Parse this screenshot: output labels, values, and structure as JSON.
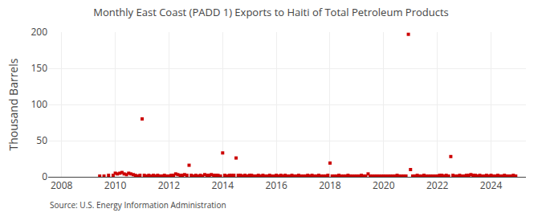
{
  "chart_data": {
    "type": "scatter",
    "title": "Monthly East Coast (PADD 1) Exports to Haiti of Total Petroleum Products",
    "ylabel": "Thousand Barrels",
    "annotations": [
      "Source: U.S. Energy Information Administration"
    ],
    "color": "#cc0000",
    "marker": "square",
    "grid": true,
    "xlim": [
      2007.5,
      2025.3
    ],
    "xticks": [
      2008,
      2010,
      2012,
      2014,
      2016,
      2018,
      2020,
      2022,
      2024
    ],
    "ylim": [
      0,
      200
    ],
    "yticks": [
      0,
      50,
      100,
      150,
      200
    ],
    "x": [
      2009.42,
      2009.58,
      2009.75,
      2009.92,
      2010,
      2010.08,
      2010.17,
      2010.25,
      2010.33,
      2010.42,
      2010.5,
      2010.58,
      2010.67,
      2010.75,
      2010.83,
      2010.92,
      2011,
      2011.08,
      2011.17,
      2011.25,
      2011.33,
      2011.42,
      2011.5,
      2011.58,
      2011.67,
      2011.75,
      2011.83,
      2011.92,
      2012,
      2012.08,
      2012.17,
      2012.25,
      2012.33,
      2012.42,
      2012.5,
      2012.58,
      2012.67,
      2012.75,
      2012.83,
      2012.92,
      2013,
      2013.08,
      2013.17,
      2013.25,
      2013.33,
      2013.42,
      2013.5,
      2013.58,
      2013.67,
      2013.75,
      2013.83,
      2013.92,
      2014,
      2014.08,
      2014.17,
      2014.25,
      2014.33,
      2014.42,
      2014.5,
      2014.58,
      2014.67,
      2014.75,
      2014.83,
      2014.92,
      2015,
      2015.08,
      2015.17,
      2015.25,
      2015.33,
      2015.42,
      2015.5,
      2015.58,
      2015.67,
      2015.75,
      2015.83,
      2015.92,
      2016,
      2016.08,
      2016.17,
      2016.25,
      2016.33,
      2016.42,
      2016.5,
      2016.58,
      2016.67,
      2016.75,
      2016.83,
      2016.92,
      2017,
      2017.08,
      2017.17,
      2017.25,
      2017.33,
      2017.42,
      2017.5,
      2017.58,
      2017.67,
      2017.75,
      2017.83,
      2017.92,
      2018,
      2018.08,
      2018.17,
      2018.25,
      2018.33,
      2018.42,
      2018.5,
      2018.58,
      2018.67,
      2018.75,
      2018.83,
      2018.92,
      2019,
      2019.08,
      2019.17,
      2019.25,
      2019.33,
      2019.42,
      2019.5,
      2019.58,
      2019.67,
      2019.75,
      2019.83,
      2019.92,
      2020,
      2020.08,
      2020.17,
      2020.25,
      2020.33,
      2020.42,
      2020.5,
      2020.58,
      2020.67,
      2020.75,
      2020.83,
      2020.92,
      2021,
      2021.08,
      2021.17,
      2021.25,
      2021.33,
      2021.42,
      2021.5,
      2021.58,
      2021.67,
      2021.75,
      2021.83,
      2021.92,
      2022,
      2022.08,
      2022.17,
      2022.25,
      2022.33,
      2022.42,
      2022.5,
      2022.58,
      2022.67,
      2022.75,
      2022.83,
      2022.92,
      2023,
      2023.08,
      2023.17,
      2023.25,
      2023.33,
      2023.42,
      2023.5,
      2023.58,
      2023.67,
      2023.75,
      2023.83,
      2023.92,
      2024,
      2024.08,
      2024.17,
      2024.25,
      2024.33,
      2024.42,
      2024.5,
      2024.58,
      2024.67,
      2024.75,
      2024.83,
      2024.92
    ],
    "values": [
      1,
      1,
      2,
      2,
      5,
      4,
      5,
      6,
      4,
      3,
      5,
      4,
      3,
      2,
      1,
      2,
      80,
      2,
      1,
      2,
      1,
      2,
      1,
      2,
      1,
      1,
      2,
      1,
      1,
      2,
      2,
      4,
      3,
      2,
      2,
      3,
      2,
      16,
      2,
      1,
      2,
      1,
      2,
      1,
      3,
      2,
      2,
      3,
      2,
      2,
      2,
      1,
      33,
      2,
      1,
      2,
      2,
      2,
      26,
      2,
      2,
      1,
      2,
      1,
      2,
      2,
      1,
      1,
      2,
      1,
      2,
      1,
      1,
      2,
      1,
      1,
      2,
      1,
      2,
      1,
      2,
      1,
      1,
      2,
      1,
      1,
      2,
      1,
      1,
      1,
      2,
      1,
      2,
      1,
      1,
      2,
      1,
      1,
      1,
      2,
      19,
      1,
      1,
      1,
      2,
      1,
      1,
      1,
      2,
      1,
      1,
      1,
      1,
      1,
      2,
      1,
      1,
      4,
      1,
      1,
      1,
      1,
      1,
      1,
      1,
      1,
      1,
      1,
      1,
      1,
      2,
      1,
      1,
      1,
      1,
      197,
      10,
      1,
      1,
      2,
      1,
      1,
      2,
      1,
      1,
      1,
      1,
      1,
      1,
      2,
      2,
      1,
      2,
      1,
      28,
      2,
      1,
      1,
      2,
      1,
      1,
      2,
      2,
      3,
      2,
      2,
      1,
      2,
      1,
      1,
      2,
      1,
      2,
      1,
      1,
      2,
      1,
      1,
      2,
      1,
      1,
      1,
      2,
      1
    ]
  }
}
